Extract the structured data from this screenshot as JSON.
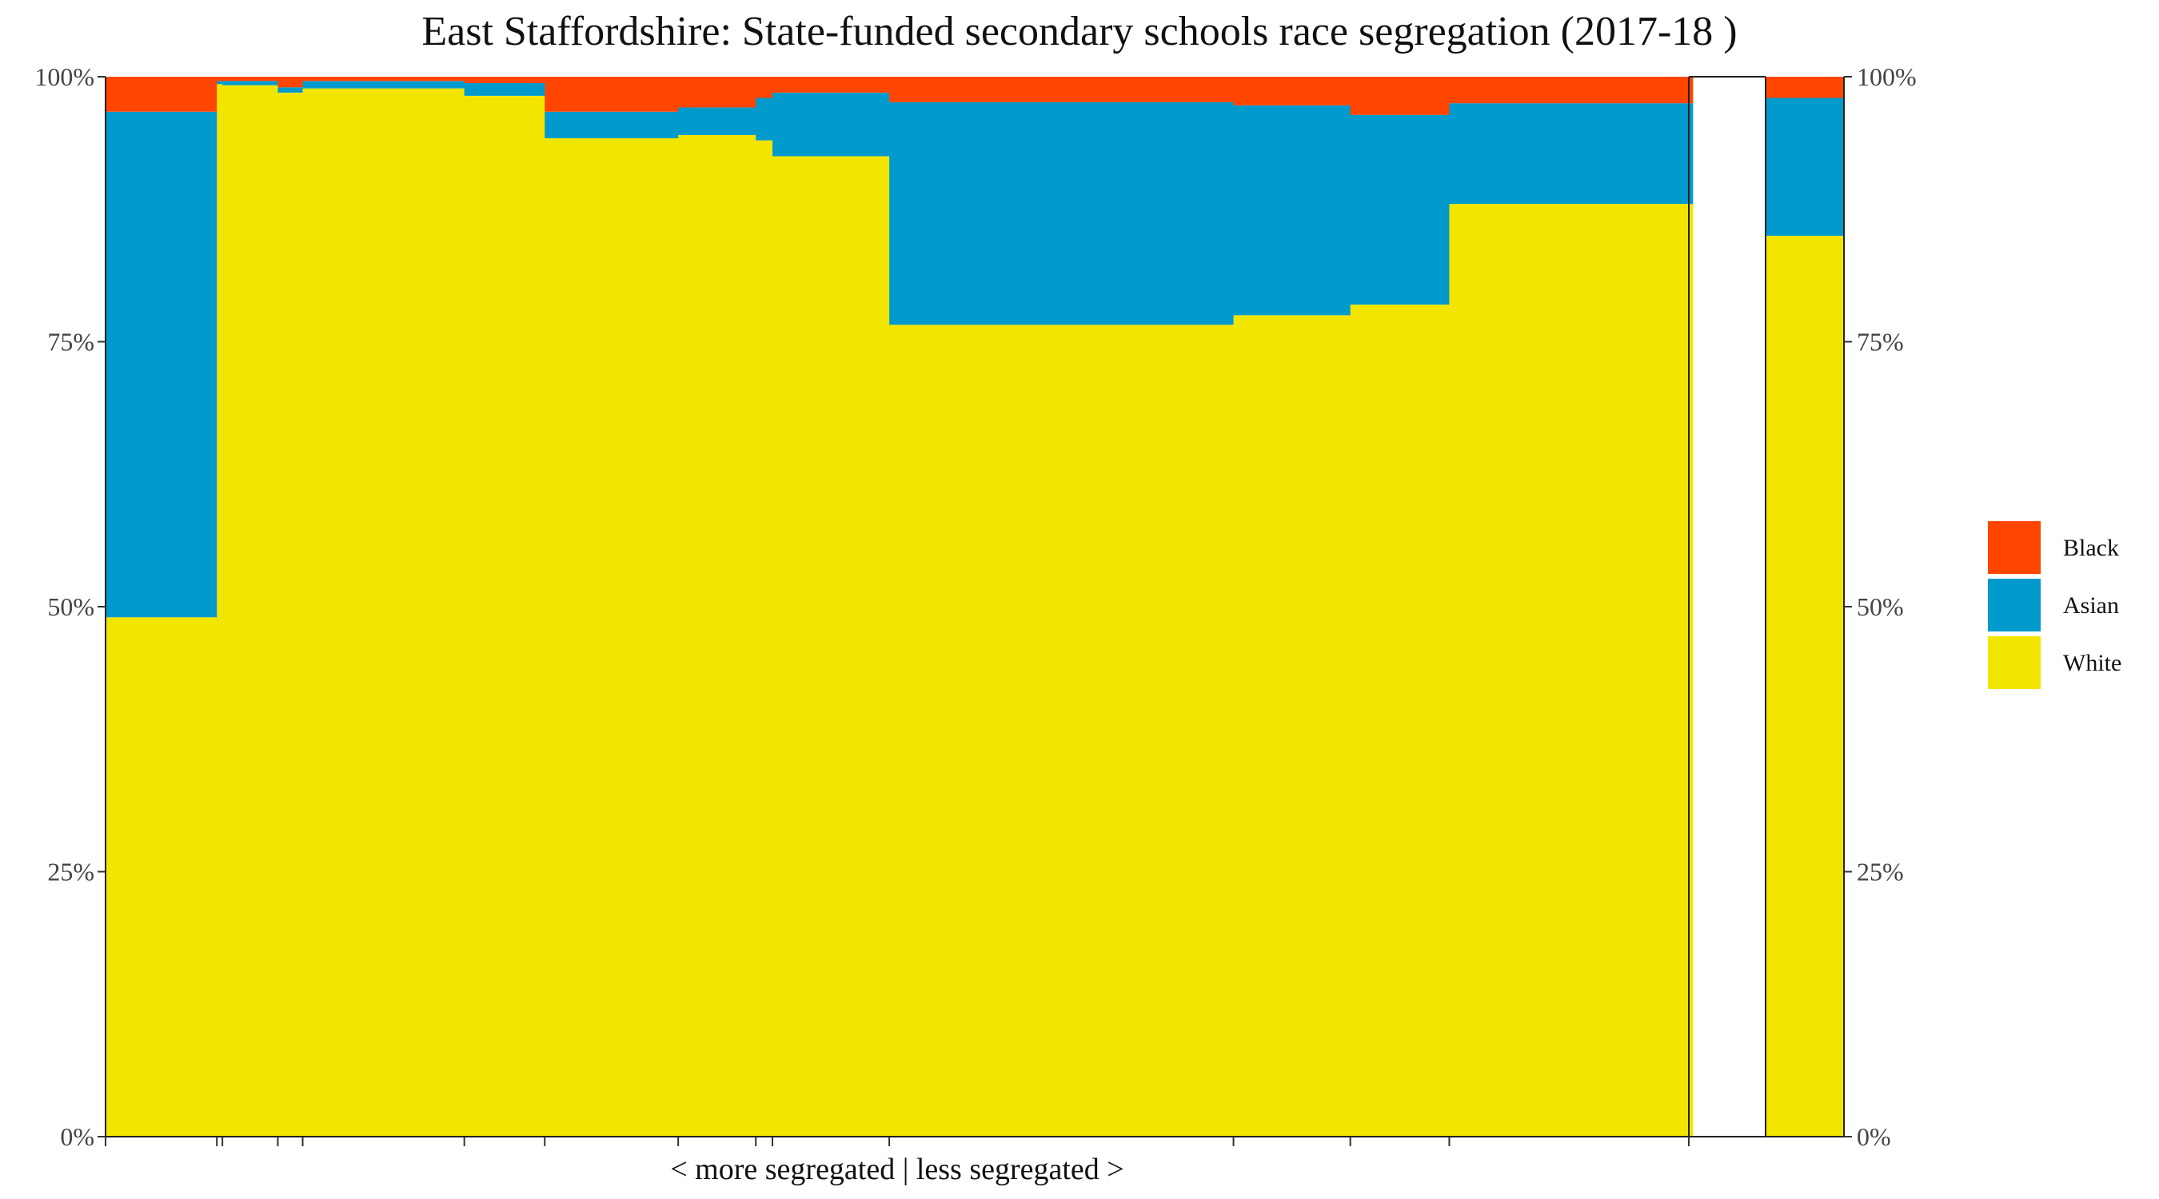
{
  "title": "East Staffordshire: State-funded secondary schools race segregation (2017-18 )",
  "chart_data": {
    "type": "bar",
    "stacked": true,
    "variable_width": true,
    "title": "East Staffordshire: State-funded secondary schools race segregation (2017-18 )",
    "xlabel": "< more segregated | less segregated >",
    "ylabel": "",
    "ylim": [
      0,
      100
    ],
    "yticks": [
      "0%",
      "25%",
      "50%",
      "75%",
      "100%"
    ],
    "legend_position": "right",
    "legend": [
      "Black",
      "Asian",
      "White"
    ],
    "colors": {
      "Black": "#FF4500",
      "Asian": "#009ACD",
      "White": "#F2E500"
    },
    "schools": [
      {
        "share": 0.0703,
        "white": 49.0,
        "asian": 47.7,
        "black": 3.3
      },
      {
        "share": 0.0035,
        "white": 99.3,
        "asian": 0.3,
        "black": 0.4
      },
      {
        "share": 0.035,
        "white": 99.2,
        "asian": 0.4,
        "black": 0.4
      },
      {
        "share": 0.0157,
        "white": 98.5,
        "asian": 0.5,
        "black": 1.0
      },
      {
        "share": 0.1021,
        "white": 98.9,
        "asian": 0.7,
        "black": 0.4
      },
      {
        "share": 0.0508,
        "white": 98.2,
        "asian": 1.2,
        "black": 0.6
      },
      {
        "share": 0.0843,
        "white": 94.2,
        "asian": 2.5,
        "black": 3.3
      },
      {
        "share": 0.049,
        "white": 94.5,
        "asian": 2.6,
        "black": 2.9
      },
      {
        "share": 0.0105,
        "white": 94.0,
        "asian": 4.0,
        "black": 2.0
      },
      {
        "share": 0.0738,
        "white": 92.5,
        "asian": 6.0,
        "black": 1.5
      },
      {
        "share": 0.2174,
        "white": 76.6,
        "asian": 21.0,
        "black": 2.4
      },
      {
        "share": 0.0738,
        "white": 77.5,
        "asian": 19.8,
        "black": 2.7
      },
      {
        "share": 0.0625,
        "white": 78.5,
        "asian": 17.9,
        "black": 3.6
      },
      {
        "share": 0.1537,
        "white": 88.0,
        "asian": 9.5,
        "black": 2.5
      }
    ],
    "total": {
      "label": "",
      "white": 85.0,
      "asian": 13.0,
      "black": 2.0
    }
  }
}
